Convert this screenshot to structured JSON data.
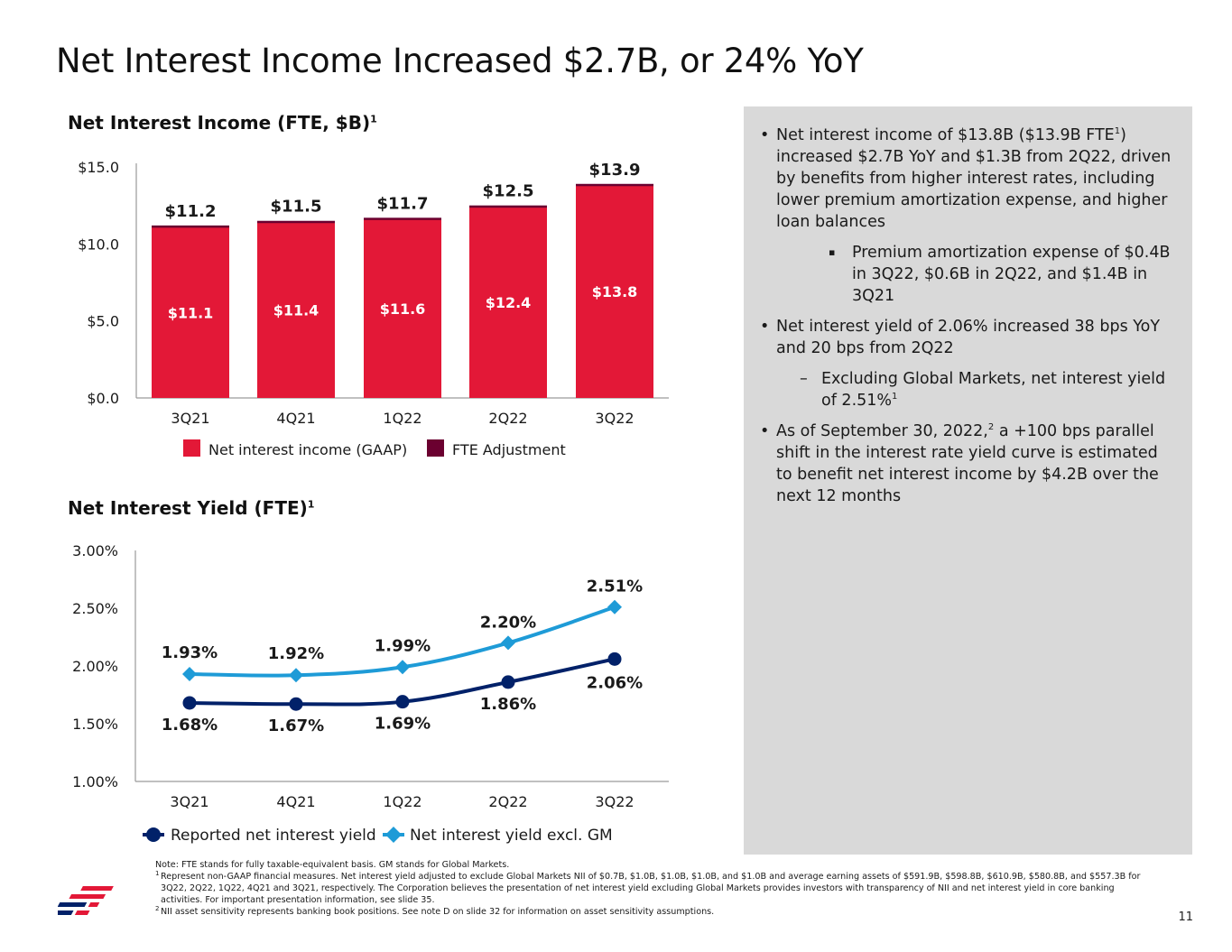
{
  "title": "Net Interest Income Increased $2.7B, or 24% YoY",
  "page_number": "11",
  "chart_data": [
    {
      "type": "bar",
      "title": "Net Interest Income (FTE, $B)",
      "title_sup": "1",
      "categories": [
        "3Q21",
        "4Q21",
        "1Q22",
        "2Q22",
        "3Q22"
      ],
      "series": [
        {
          "name": "Net interest income (GAAP)",
          "values": [
            11.1,
            11.4,
            11.6,
            12.4,
            13.8
          ],
          "labels": [
            "$11.1",
            "$11.4",
            "$11.6",
            "$12.4",
            "$13.8"
          ],
          "color": "#e31837"
        },
        {
          "name": "FTE Adjustment",
          "values": [
            0.1,
            0.1,
            0.1,
            0.1,
            0.1
          ],
          "color": "#6b0030"
        }
      ],
      "totals": [
        "$11.2",
        "$11.5",
        "$11.7",
        "$12.5",
        "$13.9"
      ],
      "total_values": [
        11.2,
        11.5,
        11.7,
        12.5,
        13.9
      ],
      "yticks": [
        "$0.0",
        "$5.0",
        "$10.0",
        "$15.0"
      ],
      "ytick_values": [
        0,
        5,
        10,
        15
      ],
      "ylim": [
        0,
        15
      ],
      "legend_position": "bottom",
      "grid": false
    },
    {
      "type": "line",
      "title": "Net Interest Yield (FTE)",
      "title_sup": "1",
      "categories": [
        "3Q21",
        "4Q21",
        "1Q22",
        "2Q22",
        "3Q22"
      ],
      "series": [
        {
          "name": "Reported net interest yield",
          "values": [
            1.68,
            1.67,
            1.69,
            1.86,
            2.06
          ],
          "labels": [
            "1.68%",
            "1.67%",
            "1.69%",
            "1.86%",
            "2.06%"
          ],
          "color": "#012169",
          "marker": "circle"
        },
        {
          "name": "Net interest yield excl. GM",
          "values": [
            1.93,
            1.92,
            1.99,
            2.2,
            2.51
          ],
          "labels": [
            "1.93%",
            "1.92%",
            "1.99%",
            "2.20%",
            "2.51%"
          ],
          "color": "#1e9bd7",
          "marker": "diamond"
        }
      ],
      "yticks": [
        "1.00%",
        "1.50%",
        "2.00%",
        "2.50%",
        "3.00%"
      ],
      "ytick_values": [
        1.0,
        1.5,
        2.0,
        2.5,
        3.0
      ],
      "ylim": [
        1.0,
        3.0
      ],
      "legend_position": "bottom",
      "grid": false
    }
  ],
  "side_panel": {
    "b1_before": "Net interest income of $13.8B ($13.9B FTE",
    "b1_sup": "1",
    "b1_after": ") increased $2.7B YoY and $1.3B from 2Q22, driven by benefits from higher interest rates, including lower premium amortization expense, and higher loan balances",
    "b1_sub": "Premium amortization expense of $0.4B in 3Q22, $0.6B in 2Q22, and $1.4B in 3Q21",
    "b2": "Net interest yield of 2.06% increased 38 bps YoY and 20 bps from 2Q22",
    "b2_sub_text": "Excluding Global Markets, net interest yield of 2.51%",
    "b2_sub_sup": "1",
    "b3_before": "As of September 30, 2022,",
    "b3_sup": "2",
    "b3_after": " a +100 bps parallel shift in the interest rate yield curve is estimated to benefit net interest income by $4.2B over the next 12 months"
  },
  "notes": {
    "note": "Note: FTE stands for fully taxable-equivalent basis. GM stands for Global Markets.",
    "fn1_mark": "1",
    "fn1": "Represent non-GAAP financial measures. Net interest yield adjusted to exclude Global Markets NII of $0.7B, $1.0B, $1.0B, $1.0B, and $1.0B and average earning assets of $591.9B, $598.8B, $610.9B, $580.8B, and $557.3B for 3Q22, 2Q22, 1Q22, 4Q21 and 3Q21, respectively. The Corporation believes the presentation of net interest yield excluding Global Markets provides investors with transparency of NII and net interest yield in core banking activities. For important presentation information, see slide 35.",
    "fn2_mark": "2",
    "fn2": "NII asset sensitivity represents banking book positions. See note D on slide 32 for information on asset sensitivity assumptions."
  },
  "colors": {
    "brand_red": "#e31837",
    "fte_maroon": "#6b0030",
    "navy": "#012169",
    "light_blue": "#1e9bd7",
    "panel_gray": "#d9d9d9"
  },
  "icons": {
    "logo": "bank-of-america-flag-logo"
  }
}
